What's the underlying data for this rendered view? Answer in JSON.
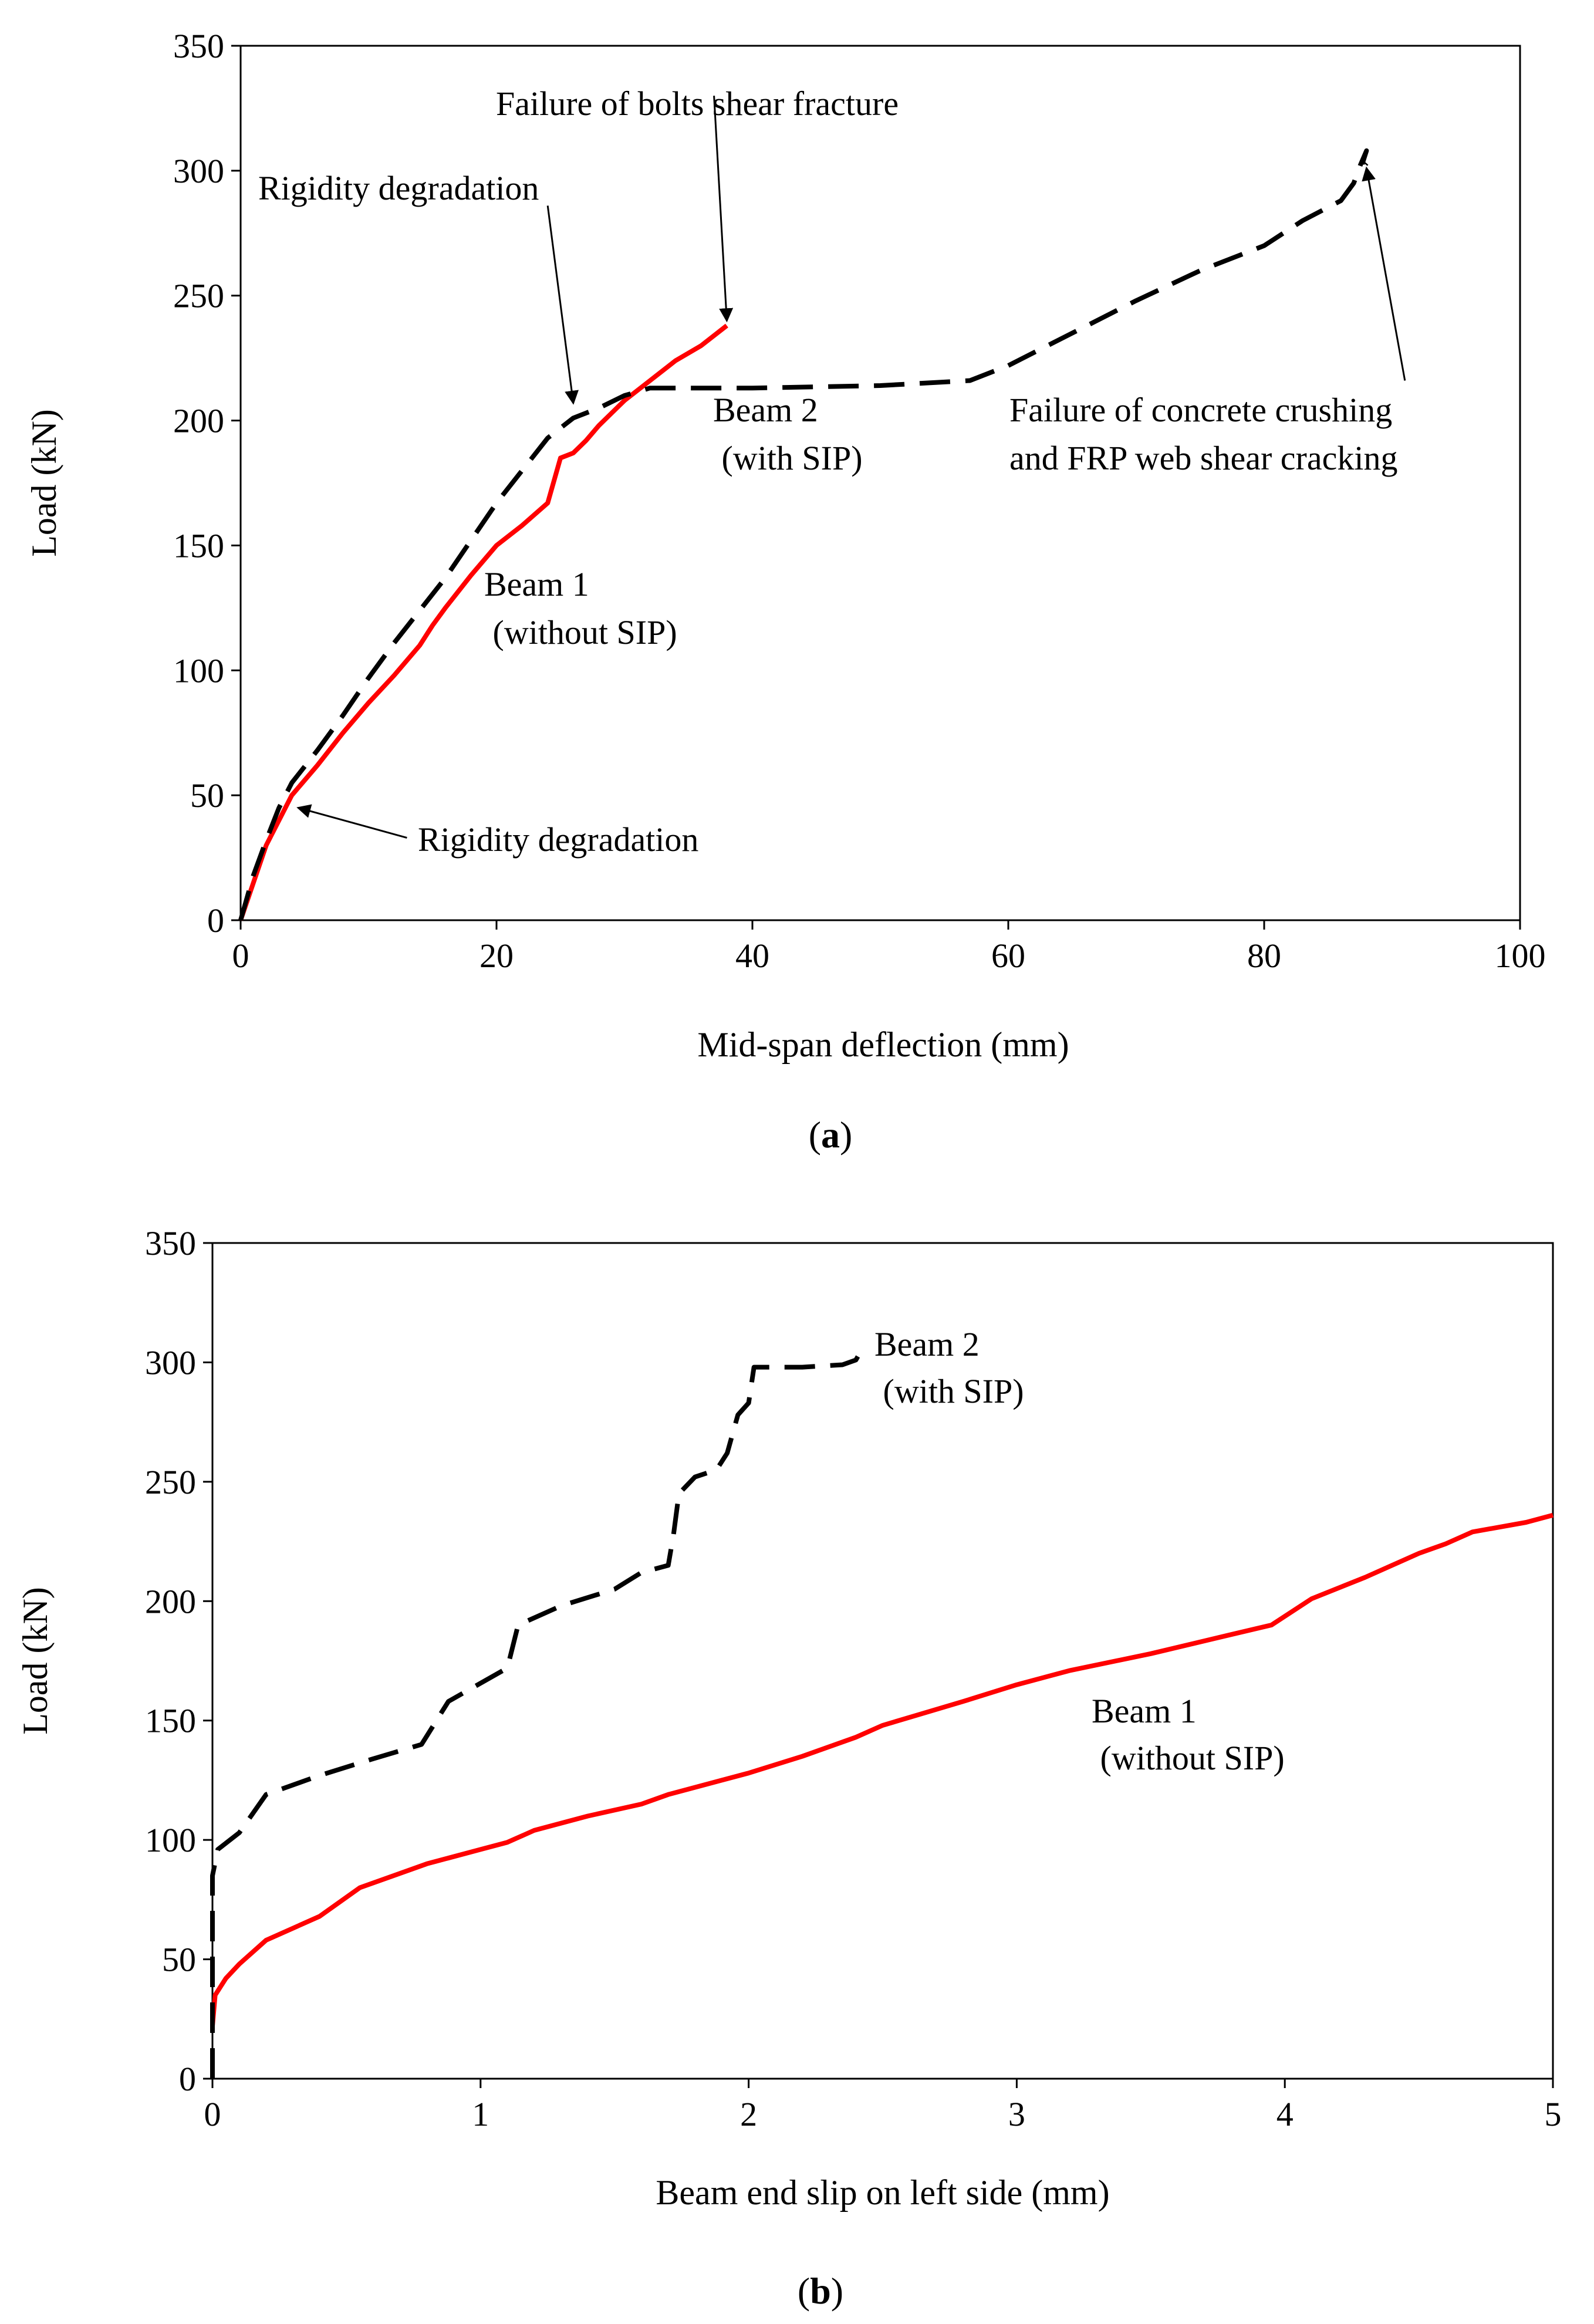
{
  "figure": {
    "panel_a_label": "a",
    "panel_b_label": "b"
  },
  "chart_data": [
    {
      "id": "a",
      "type": "line",
      "xlabel": "Mid-span deflection (mm)",
      "ylabel": "Load (kN)",
      "xlim": [
        0,
        100
      ],
      "ylim": [
        0,
        350
      ],
      "xticks": [
        "0",
        "20",
        "40",
        "60",
        "80",
        "100"
      ],
      "yticks": [
        "0",
        "50",
        "100",
        "150",
        "200",
        "250",
        "300",
        "350"
      ],
      "grid": false,
      "series": [
        {
          "name": "Beam 1 (without SIP)",
          "color": "#ff0000",
          "style": "solid",
          "points": [
            [
              0,
              0
            ],
            [
              1,
              15
            ],
            [
              2,
              30
            ],
            [
              3,
              40
            ],
            [
              4,
              50
            ],
            [
              6,
              62
            ],
            [
              8,
              75
            ],
            [
              10,
              87
            ],
            [
              12,
              98
            ],
            [
              14,
              110
            ],
            [
              15,
              118
            ],
            [
              16,
              125
            ],
            [
              18,
              138
            ],
            [
              20,
              150
            ],
            [
              22,
              158
            ],
            [
              24,
              167
            ],
            [
              25,
              185
            ],
            [
              26,
              187
            ],
            [
              27,
              192
            ],
            [
              28,
              198
            ],
            [
              29,
              203
            ],
            [
              30,
              208
            ],
            [
              32,
              216
            ],
            [
              34,
              224
            ],
            [
              36,
              230
            ],
            [
              38,
              238
            ]
          ]
        },
        {
          "name": "Beam 2 (with SIP)",
          "color": "#000000",
          "style": "dashed",
          "points": [
            [
              0,
              0
            ],
            [
              1,
              18
            ],
            [
              2,
              32
            ],
            [
              3,
              45
            ],
            [
              4,
              55
            ],
            [
              6,
              68
            ],
            [
              8,
              82
            ],
            [
              10,
              97
            ],
            [
              12,
              111
            ],
            [
              14,
              124
            ],
            [
              16,
              137
            ],
            [
              18,
              152
            ],
            [
              20,
              167
            ],
            [
              22,
              180
            ],
            [
              24,
              193
            ],
            [
              26,
              201
            ],
            [
              28,
              205
            ],
            [
              30,
              210
            ],
            [
              32,
              213
            ],
            [
              35,
              213
            ],
            [
              40,
              213
            ],
            [
              50,
              214
            ],
            [
              57,
              216
            ],
            [
              60,
              222
            ],
            [
              65,
              235
            ],
            [
              70,
              248
            ],
            [
              75,
              260
            ],
            [
              80,
              270
            ],
            [
              83,
              280
            ],
            [
              86,
              288
            ],
            [
              87,
              295
            ],
            [
              87.5,
              302
            ],
            [
              88,
              308
            ],
            [
              87.5,
              300
            ],
            [
              88,
              303
            ]
          ]
        }
      ],
      "annotations": [
        {
          "lines": [
            "Failure  of bolts shear fracture"
          ],
          "from": [
            37,
            330
          ],
          "to": [
            38,
            240
          ]
        },
        {
          "lines": [
            "Rigidity  degradation"
          ],
          "from": [
            24,
            286
          ],
          "to": [
            26,
            207
          ]
        },
        {
          "lines": [
            "Rigidity  degradation"
          ],
          "from": [
            13,
            33
          ],
          "to": [
            4.5,
            45
          ]
        },
        {
          "lines": [
            "Failure  of concrete crushing",
            "and FRP web shear cracking"
          ],
          "from": [
            91,
            216
          ],
          "to": [
            88,
            301
          ]
        },
        {
          "lines": [
            "Beam 2",
            " (with SIP)"
          ]
        },
        {
          "lines": [
            "Beam 1",
            " (without SIP)"
          ]
        }
      ]
    },
    {
      "id": "b",
      "type": "line",
      "xlabel": "Beam end slip on left side (mm)",
      "ylabel": "Load (kN)",
      "xlim": [
        0,
        5
      ],
      "ylim": [
        0,
        350
      ],
      "xticks": [
        "0",
        "1",
        "2",
        "3",
        "4",
        "5"
      ],
      "yticks": [
        "0",
        "50",
        "100",
        "150",
        "200",
        "250",
        "300",
        "350"
      ],
      "grid": false,
      "series": [
        {
          "name": "Beam 1 (without SIP)",
          "color": "#ff0000",
          "style": "solid",
          "points": [
            [
              0,
              22
            ],
            [
              0.01,
              35
            ],
            [
              0.05,
              42
            ],
            [
              0.1,
              48
            ],
            [
              0.2,
              58
            ],
            [
              0.4,
              68
            ],
            [
              0.55,
              80
            ],
            [
              0.8,
              90
            ],
            [
              1,
              96
            ],
            [
              1.1,
              99
            ],
            [
              1.2,
              104
            ],
            [
              1.4,
              110
            ],
            [
              1.6,
              115
            ],
            [
              1.7,
              119
            ],
            [
              1.9,
              125
            ],
            [
              2,
              128
            ],
            [
              2.2,
              135
            ],
            [
              2.4,
              143
            ],
            [
              2.5,
              148
            ],
            [
              2.8,
              158
            ],
            [
              3,
              165
            ],
            [
              3.2,
              171
            ],
            [
              3.5,
              178
            ],
            [
              3.8,
              186
            ],
            [
              3.95,
              190
            ],
            [
              4.1,
              201
            ],
            [
              4.3,
              210
            ],
            [
              4.5,
              220
            ],
            [
              4.6,
              224
            ],
            [
              4.7,
              229
            ],
            [
              4.9,
              233
            ],
            [
              5,
              236
            ]
          ]
        },
        {
          "name": "Beam 2 (with SIP)",
          "color": "#000000",
          "style": "dashed",
          "points": [
            [
              0,
              0
            ],
            [
              0,
              50
            ],
            [
              0,
              85
            ],
            [
              0.02,
              96
            ],
            [
              0.1,
              103
            ],
            [
              0.2,
              119
            ],
            [
              0.4,
              127
            ],
            [
              0.6,
              134
            ],
            [
              0.78,
              140
            ],
            [
              0.88,
              158
            ],
            [
              1.1,
              172
            ],
            [
              1.14,
              190
            ],
            [
              1.3,
              198
            ],
            [
              1.5,
              205
            ],
            [
              1.6,
              212
            ],
            [
              1.7,
              215
            ],
            [
              1.72,
              228
            ],
            [
              1.74,
              245
            ],
            [
              1.8,
              252
            ],
            [
              1.88,
              255
            ],
            [
              1.92,
              262
            ],
            [
              1.96,
              278
            ],
            [
              2,
              283
            ],
            [
              2.02,
              298
            ],
            [
              2.2,
              298
            ],
            [
              2.35,
              299
            ],
            [
              2.4,
              301
            ],
            [
              2.42,
              305
            ]
          ]
        }
      ],
      "annotations": [
        {
          "lines": [
            "Beam 2",
            " (with SIP)"
          ]
        },
        {
          "lines": [
            "Beam 1",
            " (without SIP)"
          ]
        }
      ]
    }
  ]
}
